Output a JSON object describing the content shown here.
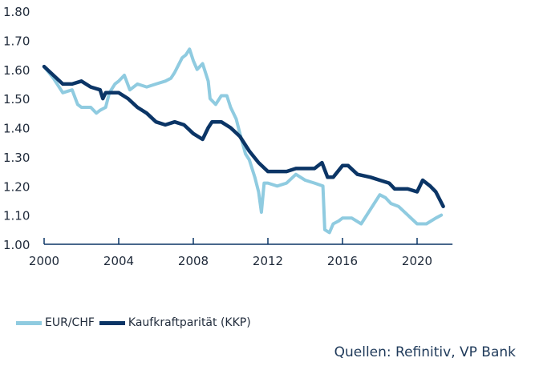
{
  "chart_data": {
    "type": "line",
    "title": "",
    "xlabel": "",
    "ylabel": "",
    "xlim": [
      2000,
      2021.9
    ],
    "ylim": [
      1.0,
      1.8
    ],
    "x_ticks": [
      "2000",
      "2004",
      "2008",
      "2012",
      "2016",
      "2020"
    ],
    "y_ticks": [
      "1.00",
      "1.10",
      "1.20",
      "1.30",
      "1.40",
      "1.50",
      "1.60",
      "1.70",
      "1.80"
    ],
    "grid": false,
    "legend_position": "bottom-left",
    "series": [
      {
        "name": "EUR/CHF",
        "color": "#8fcbe0",
        "x": [
          2000.0,
          2000.5,
          2001.0,
          2001.5,
          2001.8,
          2002.0,
          2002.5,
          2002.8,
          2003.0,
          2003.3,
          2003.5,
          2003.8,
          2004.0,
          2004.3,
          2004.6,
          2005.0,
          2005.5,
          2006.0,
          2006.5,
          2006.8,
          2007.0,
          2007.4,
          2007.6,
          2007.8,
          2008.0,
          2008.2,
          2008.5,
          2008.8,
          2008.9,
          2009.2,
          2009.5,
          2009.8,
          2010.0,
          2010.3,
          2010.5,
          2010.8,
          2011.0,
          2011.3,
          2011.5,
          2011.65,
          2011.8,
          2012.0,
          2012.5,
          2013.0,
          2013.5,
          2014.0,
          2014.5,
          2014.95,
          2015.05,
          2015.3,
          2015.5,
          2015.8,
          2016.0,
          2016.5,
          2017.0,
          2017.5,
          2018.0,
          2018.3,
          2018.6,
          2019.0,
          2019.5,
          2020.0,
          2020.5,
          2021.0,
          2021.3
        ],
        "y": [
          1.61,
          1.57,
          1.52,
          1.53,
          1.48,
          1.47,
          1.47,
          1.45,
          1.46,
          1.47,
          1.52,
          1.55,
          1.56,
          1.58,
          1.53,
          1.55,
          1.54,
          1.55,
          1.56,
          1.57,
          1.59,
          1.64,
          1.65,
          1.67,
          1.63,
          1.6,
          1.62,
          1.56,
          1.5,
          1.48,
          1.51,
          1.51,
          1.47,
          1.43,
          1.38,
          1.31,
          1.29,
          1.23,
          1.18,
          1.11,
          1.21,
          1.21,
          1.2,
          1.21,
          1.24,
          1.22,
          1.21,
          1.2,
          1.05,
          1.04,
          1.07,
          1.08,
          1.09,
          1.09,
          1.07,
          1.12,
          1.17,
          1.16,
          1.14,
          1.13,
          1.1,
          1.07,
          1.07,
          1.09,
          1.1
        ]
      },
      {
        "name": "Kaufkraftparität (KKP)",
        "color": "#0b3566",
        "x": [
          2000.0,
          2000.5,
          2001.0,
          2001.5,
          2002.0,
          2002.5,
          2003.0,
          2003.15,
          2003.3,
          2004.0,
          2004.5,
          2005.0,
          2005.5,
          2006.0,
          2006.5,
          2007.0,
          2007.5,
          2008.0,
          2008.5,
          2008.8,
          2009.0,
          2009.5,
          2010.0,
          2010.5,
          2011.0,
          2011.5,
          2012.0,
          2012.5,
          2013.0,
          2013.5,
          2014.0,
          2014.5,
          2014.9,
          2015.2,
          2015.5,
          2016.0,
          2016.3,
          2016.8,
          2017.5,
          2018.0,
          2018.5,
          2018.8,
          2019.5,
          2020.0,
          2020.3,
          2020.7,
          2021.0,
          2021.4
        ],
        "y": [
          1.61,
          1.58,
          1.55,
          1.55,
          1.56,
          1.54,
          1.53,
          1.5,
          1.52,
          1.52,
          1.5,
          1.47,
          1.45,
          1.42,
          1.41,
          1.42,
          1.41,
          1.38,
          1.36,
          1.4,
          1.42,
          1.42,
          1.4,
          1.37,
          1.32,
          1.28,
          1.25,
          1.25,
          1.25,
          1.26,
          1.26,
          1.26,
          1.28,
          1.23,
          1.23,
          1.27,
          1.27,
          1.24,
          1.23,
          1.22,
          1.21,
          1.19,
          1.19,
          1.18,
          1.22,
          1.2,
          1.18,
          1.13
        ]
      }
    ]
  },
  "source": "Quellen: Refinitiv, VP Bank"
}
